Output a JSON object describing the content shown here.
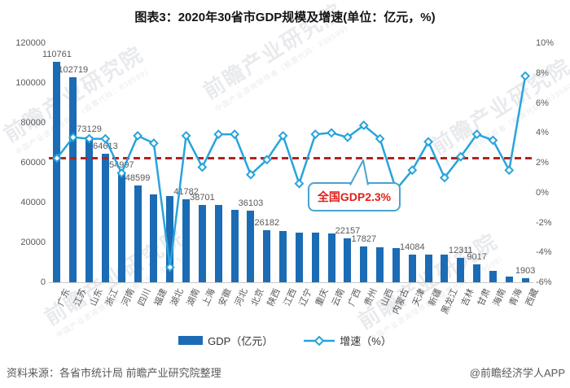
{
  "title": "图表3：2020年30省市GDP规模及增速(单位：亿元，%)",
  "chart_data": {
    "type": "bar",
    "categories": [
      "广东",
      "江苏",
      "山东",
      "浙江",
      "河南",
      "四川",
      "福建",
      "湖北",
      "湖南",
      "上海",
      "安徽",
      "河北",
      "北京",
      "陕西",
      "江西",
      "辽宁",
      "重庆",
      "云南",
      "广西",
      "贵州",
      "山西",
      "内蒙古",
      "天津",
      "新疆",
      "黑龙江",
      "吉林",
      "甘肃",
      "海南",
      "青海",
      "西藏"
    ],
    "series": [
      {
        "name": "GDP（亿元）",
        "type": "bar",
        "axis": "left",
        "values": [
          110761,
          102719,
          73129,
          64613,
          54997,
          48599,
          43904,
          43443,
          41782,
          38701,
          38681,
          36207,
          36103,
          26182,
          25692,
          25115,
          25003,
          24522,
          22157,
          17827,
          17652,
          17360,
          14084,
          13798,
          13699,
          12311,
          9017,
          5532,
          3006,
          1903
        ]
      },
      {
        "name": "增速（%）",
        "type": "line",
        "axis": "right",
        "values": [
          2.3,
          3.7,
          3.6,
          3.6,
          1.3,
          3.8,
          3.3,
          -5.0,
          3.8,
          1.7,
          3.9,
          3.9,
          1.2,
          2.2,
          3.8,
          0.6,
          3.9,
          4.0,
          3.7,
          4.5,
          3.6,
          0.2,
          1.5,
          3.4,
          1.0,
          2.4,
          3.9,
          3.5,
          1.5,
          7.8
        ]
      }
    ],
    "value_labels": {
      "0": "110761",
      "1": "102719",
      "2": "73129",
      "3": "64613",
      "4": "54997",
      "5": "48599",
      "8": "41782",
      "9": "38701",
      "12": "36103",
      "13": "26182",
      "18": "22157",
      "19": "17827",
      "22": "14084",
      "25": "12311",
      "26": "9017",
      "29": "1903"
    },
    "left_axis": {
      "ticks": [
        "120000",
        "100000",
        "80000",
        "60000",
        "40000",
        "20000",
        "0"
      ],
      "min": 0,
      "max": 120000
    },
    "right_axis": {
      "ticks": [
        "10%",
        "8%",
        "6%",
        "4%",
        "2%",
        "0%",
        "-2%",
        "-4%",
        "-6%"
      ],
      "min": -6,
      "max": 10
    },
    "reference_line": {
      "value": 2.3,
      "label": "全国GDP2.3%",
      "color": "#b22222"
    },
    "colors": {
      "bar": "#1b6cb4",
      "line": "#29a3dc"
    },
    "grid": false,
    "legend_position": "bottom"
  },
  "legend": {
    "gdp": "GDP（亿元）",
    "growth": "增速（%）"
  },
  "footer": {
    "source": "资料来源：各省市统计局 前瞻产业研究院整理",
    "credit": "@前瞻经济学人APP"
  },
  "watermark": {
    "text": "前瞻产业研究院",
    "subtext": "中国产业咨询领导者（股票代码：839599）"
  }
}
